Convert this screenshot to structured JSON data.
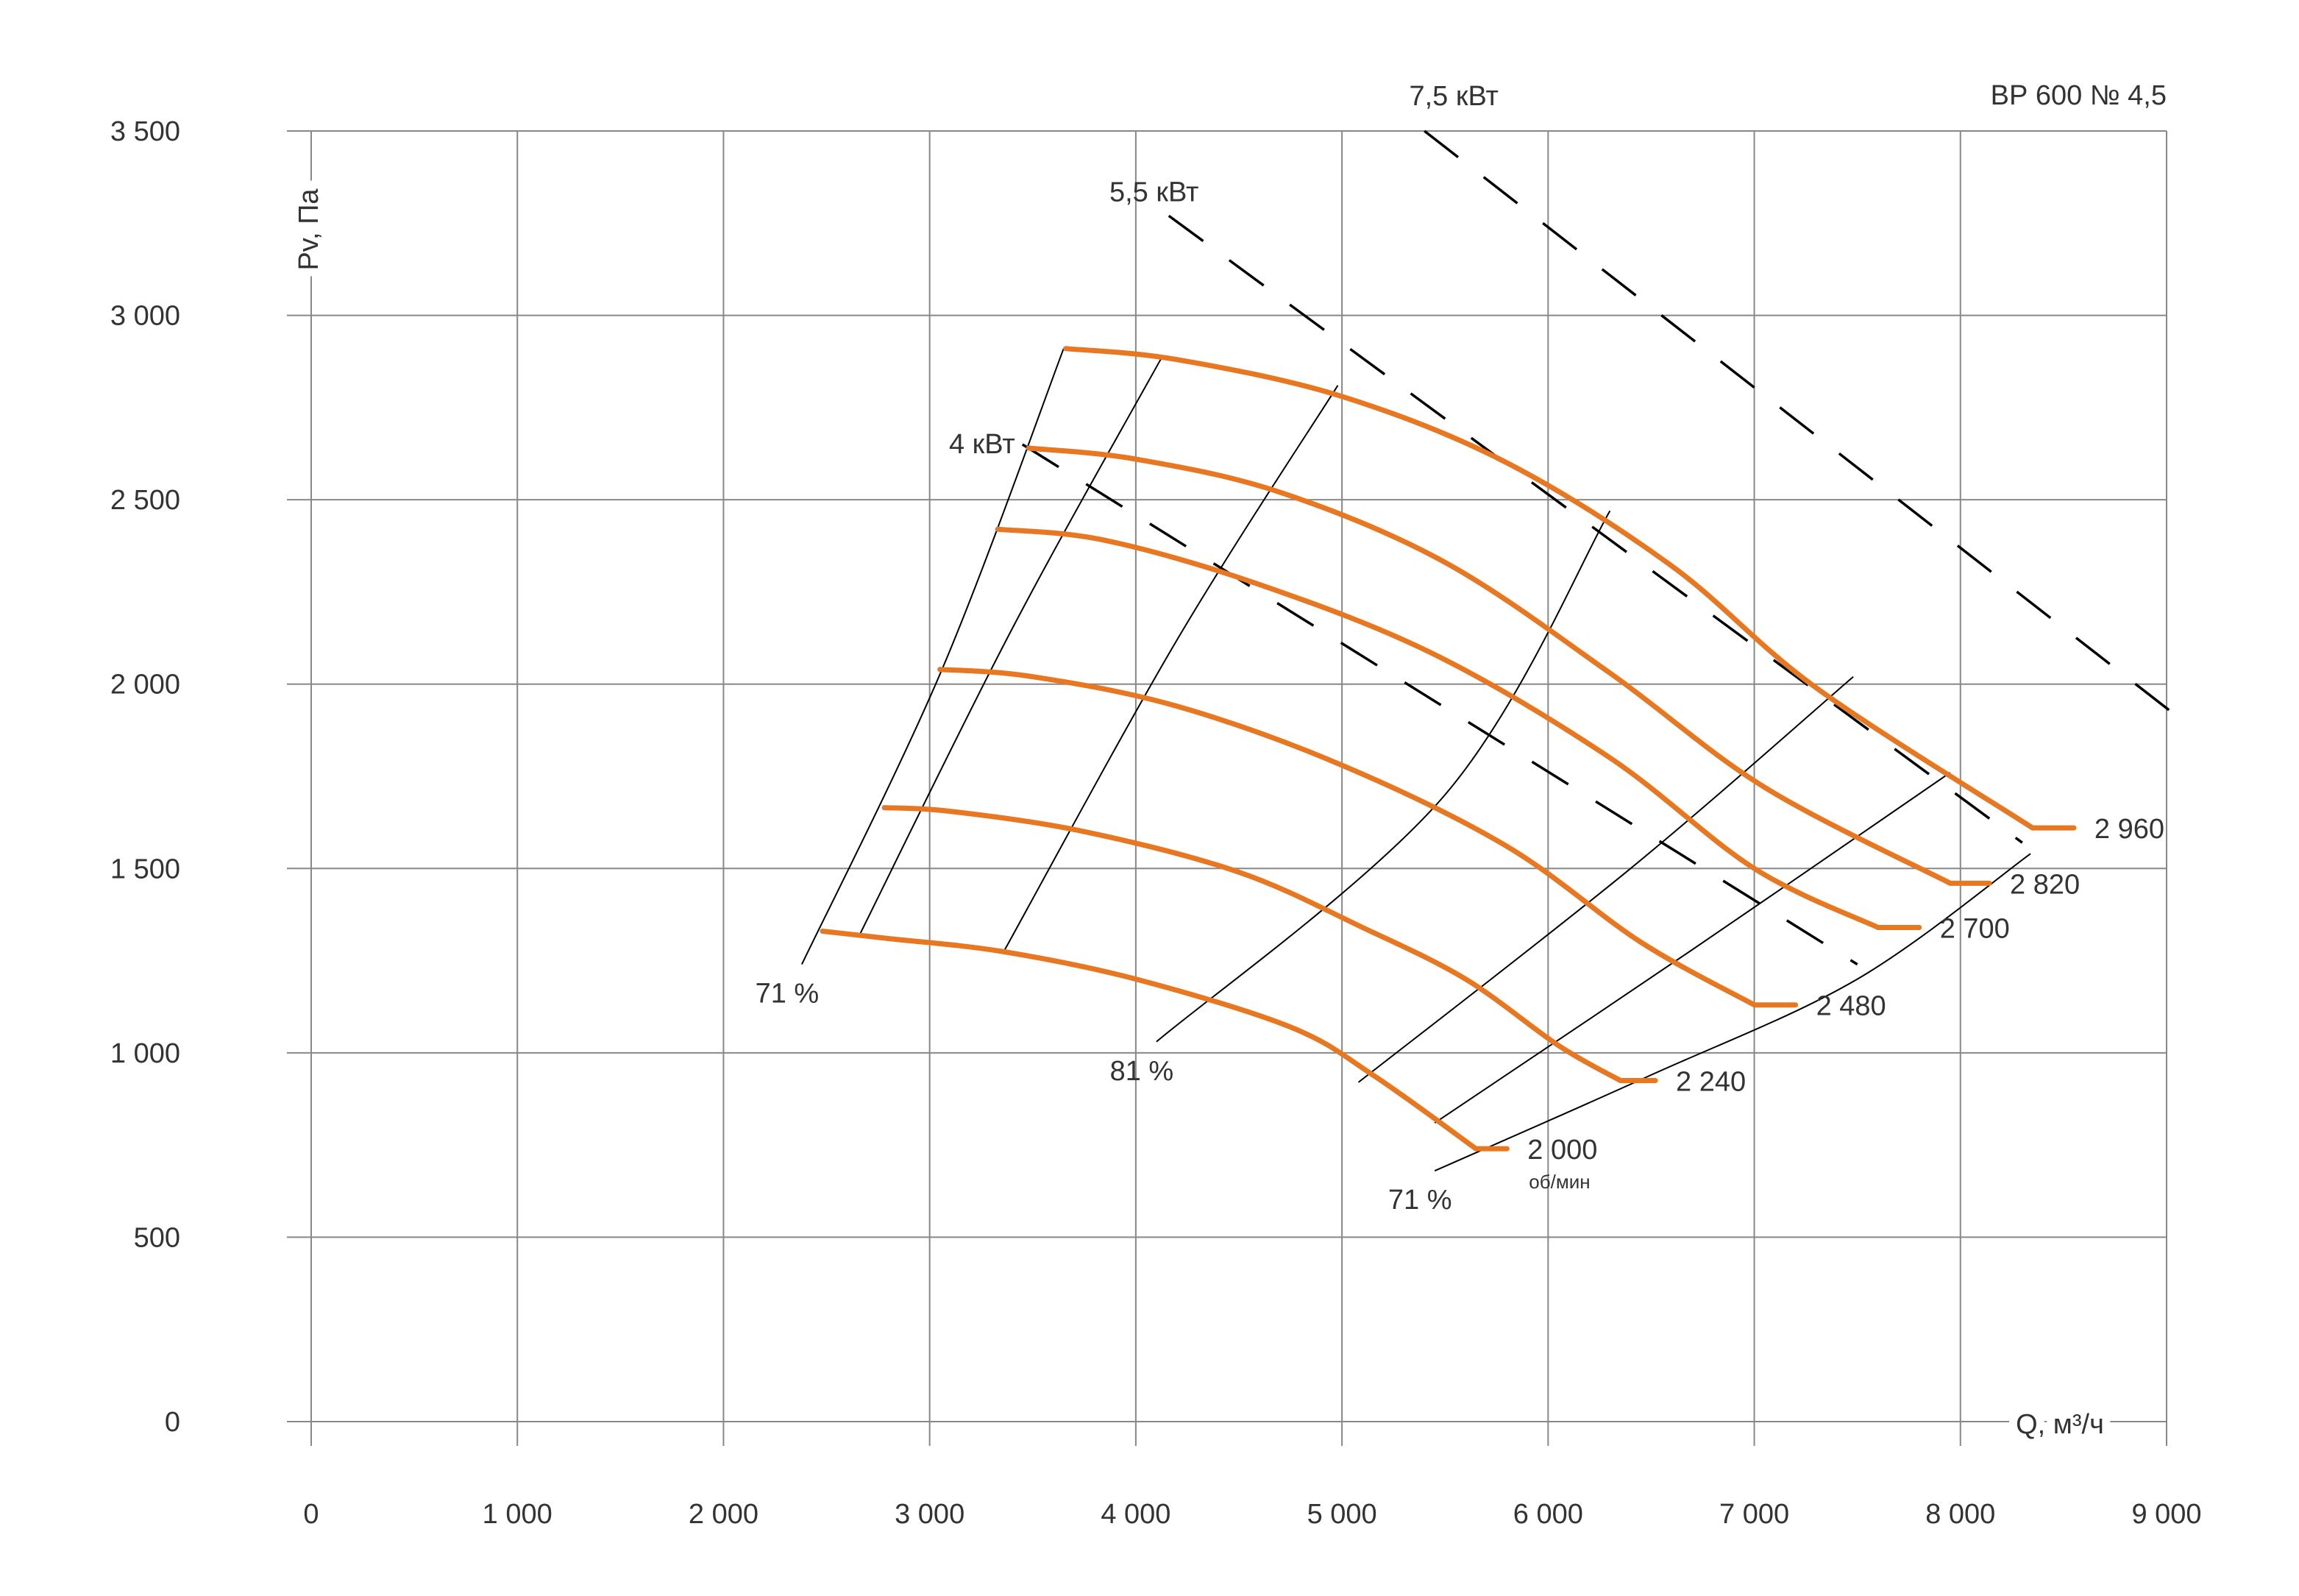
{
  "chart_data": {
    "type": "line",
    "title": "ВР 600 № 4,5",
    "xlabel": "Q, м³/ч",
    "ylabel": "Pv, Па",
    "xlim": [
      0,
      9000
    ],
    "ylim": [
      0,
      3500
    ],
    "grid": true,
    "x_ticks": [
      {
        "value": 0,
        "label": "0"
      },
      {
        "value": 1000,
        "label": "1 000"
      },
      {
        "value": 2000,
        "label": "2 000"
      },
      {
        "value": 3000,
        "label": "3 000"
      },
      {
        "value": 4000,
        "label": "4 000"
      },
      {
        "value": 5000,
        "label": "5 000"
      },
      {
        "value": 6000,
        "label": "6 000"
      },
      {
        "value": 7000,
        "label": "7 000"
      },
      {
        "value": 8000,
        "label": "8 000"
      },
      {
        "value": 9000,
        "label": "9 000"
      }
    ],
    "y_ticks": [
      {
        "value": 0,
        "label": "0"
      },
      {
        "value": 500,
        "label": "500"
      },
      {
        "value": 1000,
        "label": "1 000"
      },
      {
        "value": 1500,
        "label": "1 500"
      },
      {
        "value": 2000,
        "label": "2 000"
      },
      {
        "value": 2500,
        "label": "2 500"
      },
      {
        "value": 3000,
        "label": "3 000"
      },
      {
        "value": 3500,
        "label": "3 500"
      }
    ],
    "speed_unit": "об/мин",
    "series": [
      {
        "name": "2 000",
        "rpm": 2000,
        "color": "#E87722",
        "points": [
          [
            2480,
            1330
          ],
          [
            2800,
            1310
          ],
          [
            3350,
            1275
          ],
          [
            4000,
            1200
          ],
          [
            4750,
            1070
          ],
          [
            5150,
            940
          ],
          [
            5650,
            740
          ]
        ],
        "tail_end": [
          5800,
          740
        ]
      },
      {
        "name": "2 240",
        "rpm": 2240,
        "color": "#E87722",
        "points": [
          [
            2780,
            1665
          ],
          [
            3100,
            1655
          ],
          [
            3750,
            1600
          ],
          [
            4500,
            1490
          ],
          [
            5100,
            1340
          ],
          [
            5600,
            1200
          ],
          [
            6050,
            1020
          ],
          [
            6350,
            925
          ]
        ],
        "tail_end": [
          6520,
          925
        ]
      },
      {
        "name": "2 480",
        "rpm": 2480,
        "color": "#E87722",
        "points": [
          [
            3050,
            2040
          ],
          [
            3500,
            2020
          ],
          [
            4200,
            1940
          ],
          [
            5000,
            1780
          ],
          [
            5800,
            1560
          ],
          [
            6450,
            1300
          ],
          [
            7000,
            1130
          ]
        ],
        "tail_end": [
          7200,
          1130
        ]
      },
      {
        "name": "2 700",
        "rpm": 2700,
        "color": "#E87722",
        "points": [
          [
            3330,
            2420
          ],
          [
            3850,
            2390
          ],
          [
            4600,
            2270
          ],
          [
            5450,
            2080
          ],
          [
            6300,
            1800
          ],
          [
            7000,
            1500
          ],
          [
            7600,
            1340
          ]
        ],
        "tail_end": [
          7800,
          1340
        ]
      },
      {
        "name": "2 820",
        "rpm": 2820,
        "color": "#E87722",
        "points": [
          [
            3480,
            2640
          ],
          [
            4000,
            2610
          ],
          [
            4700,
            2520
          ],
          [
            5500,
            2330
          ],
          [
            6300,
            2030
          ],
          [
            7050,
            1720
          ],
          [
            7950,
            1460
          ]
        ],
        "tail_end": [
          8140,
          1460
        ]
      },
      {
        "name": "2 960",
        "rpm": 2960,
        "color": "#E87722",
        "points": [
          [
            3660,
            2910
          ],
          [
            4200,
            2880
          ],
          [
            5000,
            2780
          ],
          [
            5800,
            2600
          ],
          [
            6600,
            2320
          ],
          [
            7300,
            1990
          ],
          [
            8350,
            1610
          ]
        ],
        "tail_end": [
          8550,
          1610
        ]
      }
    ],
    "efficiency_lines": [
      {
        "label": "71 %",
        "points": [
          [
            2380,
            1240
          ],
          [
            3060,
            2040
          ],
          [
            3650,
            2910
          ]
        ]
      },
      {
        "points": [
          [
            2660,
            1320
          ],
          [
            3400,
            2150
          ],
          [
            4130,
            2890
          ]
        ]
      },
      {
        "points": [
          [
            3360,
            1275
          ],
          [
            4200,
            2120
          ],
          [
            4980,
            2810
          ]
        ]
      },
      {
        "label": "81 %",
        "points": [
          [
            4100,
            1030
          ],
          [
            5500,
            1700
          ],
          [
            6300,
            2470
          ]
        ]
      },
      {
        "points": [
          [
            5080,
            920
          ],
          [
            6400,
            1500
          ],
          [
            7480,
            2020
          ]
        ]
      },
      {
        "points": [
          [
            5450,
            810
          ],
          [
            6700,
            1280
          ],
          [
            7950,
            1760
          ]
        ]
      },
      {
        "label": "71 %",
        "points": [
          [
            5450,
            680
          ],
          [
            6500,
            940
          ],
          [
            7500,
            1200
          ],
          [
            8340,
            1540
          ]
        ]
      }
    ],
    "power_lines": [
      {
        "label": "4 кВт",
        "points": [
          [
            3450,
            2650
          ],
          [
            7500,
            1240
          ]
        ]
      },
      {
        "label": "5,5 кВт",
        "points": [
          [
            4160,
            3270
          ],
          [
            8300,
            1570
          ]
        ]
      },
      {
        "label": "7,5 кВт",
        "points": [
          [
            5400,
            3500
          ],
          [
            9080,
            1900
          ]
        ]
      }
    ],
    "colors": {
      "curve": "#E87722",
      "grid": "#888888",
      "line": "#000000",
      "text": "#333333"
    }
  }
}
